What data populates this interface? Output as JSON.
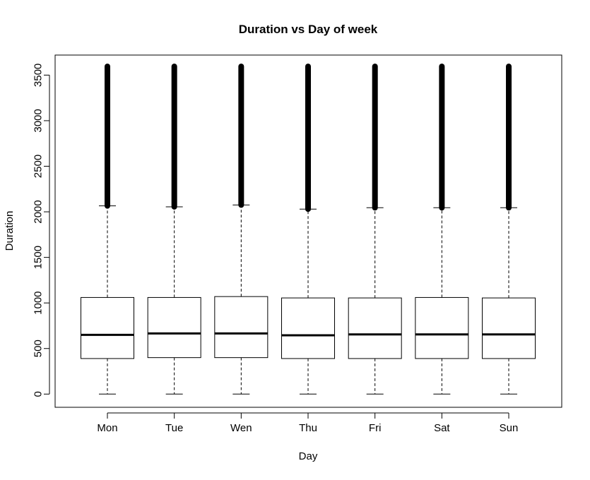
{
  "chart_data": {
    "type": "boxplot",
    "title": "Duration vs Day of week",
    "xlabel": "Day",
    "ylabel": "Duration",
    "ylim": [
      -145,
      3720
    ],
    "y_ticks": [
      0,
      500,
      1000,
      1500,
      2000,
      2500,
      3000,
      3500
    ],
    "categories": [
      "Mon",
      "Tue",
      "Wen",
      "Thu",
      "Fri",
      "Sat",
      "Sun"
    ],
    "series": [
      {
        "boxes": [
          {
            "category": "Mon",
            "whisker_low": 0,
            "q1": 390,
            "median": 650,
            "q3": 1060,
            "whisker_high": 2065,
            "outlier_low": 2065,
            "outlier_high": 3595
          },
          {
            "category": "Tue",
            "whisker_low": 0,
            "q1": 400,
            "median": 665,
            "q3": 1060,
            "whisker_high": 2055,
            "outlier_low": 2055,
            "outlier_high": 3595
          },
          {
            "category": "Wen",
            "whisker_low": 0,
            "q1": 400,
            "median": 665,
            "q3": 1070,
            "whisker_high": 2075,
            "outlier_low": 2075,
            "outlier_high": 3595
          },
          {
            "category": "Thu",
            "whisker_low": 0,
            "q1": 390,
            "median": 645,
            "q3": 1055,
            "whisker_high": 2030,
            "outlier_low": 2030,
            "outlier_high": 3595
          },
          {
            "category": "Fri",
            "whisker_low": 0,
            "q1": 390,
            "median": 655,
            "q3": 1055,
            "whisker_high": 2045,
            "outlier_low": 2045,
            "outlier_high": 3595
          },
          {
            "category": "Sat",
            "whisker_low": 0,
            "q1": 390,
            "median": 655,
            "q3": 1060,
            "whisker_high": 2045,
            "outlier_low": 2045,
            "outlier_high": 3595
          },
          {
            "category": "Sun",
            "whisker_low": 0,
            "q1": 390,
            "median": 655,
            "q3": 1055,
            "whisker_high": 2045,
            "outlier_low": 2045,
            "outlier_high": 3595
          }
        ]
      }
    ],
    "grid": false,
    "colors": {
      "box_stroke": "#000000",
      "median": "#000000",
      "outliers": "#000000",
      "background": "#ffffff"
    }
  }
}
